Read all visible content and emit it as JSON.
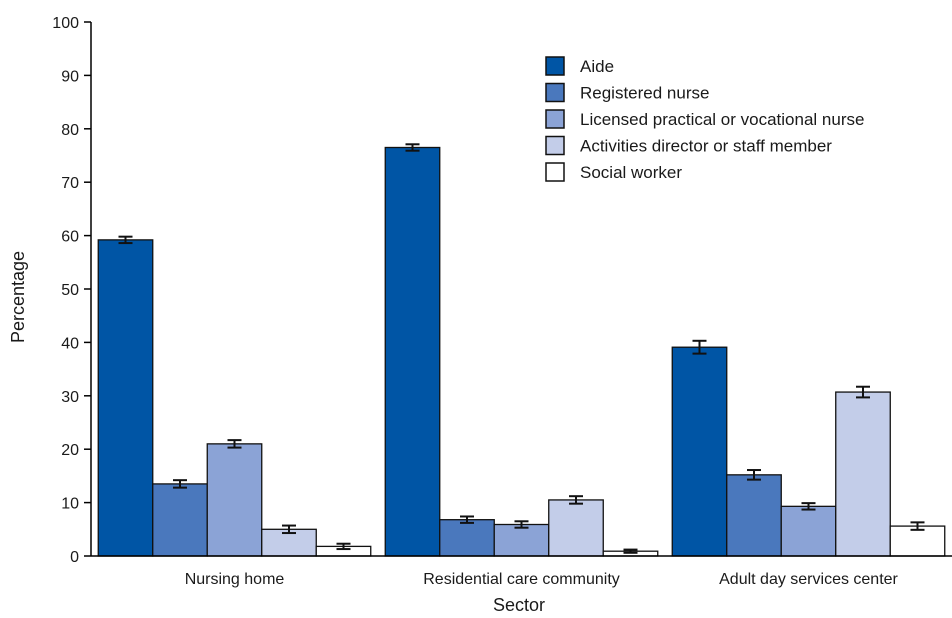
{
  "chart_data": {
    "type": "bar",
    "xlabel": "Sector",
    "ylabel": "Percentage",
    "ylim": [
      0,
      100
    ],
    "yticks": [
      0,
      10,
      20,
      30,
      40,
      50,
      60,
      70,
      80,
      90,
      100
    ],
    "grid": false,
    "legend_position": "top-right",
    "categories": [
      "Nursing home",
      "Residential care community",
      "Adult day services center"
    ],
    "series": [
      {
        "name": "Aide",
        "color": "#0055a5",
        "values": [
          59.2,
          76.5,
          39.1
        ],
        "error": [
          0.6,
          0.6,
          1.2
        ]
      },
      {
        "name": "Registered nurse",
        "color": "#4a78bd",
        "values": [
          13.5,
          6.8,
          15.2
        ],
        "error": [
          0.7,
          0.6,
          0.9
        ]
      },
      {
        "name": "Licensed practical or vocational nurse",
        "color": "#8ba3d6",
        "values": [
          21.0,
          5.9,
          9.3
        ],
        "error": [
          0.7,
          0.6,
          0.6
        ]
      },
      {
        "name": "Activities director or staff member",
        "color": "#c3cde9",
        "values": [
          5.0,
          10.5,
          30.7
        ],
        "error": [
          0.7,
          0.7,
          1.0
        ]
      },
      {
        "name": "Social worker",
        "color": "#ffffff",
        "values": [
          1.8,
          0.9,
          5.6
        ],
        "error": [
          0.5,
          0.3,
          0.7
        ]
      }
    ]
  }
}
